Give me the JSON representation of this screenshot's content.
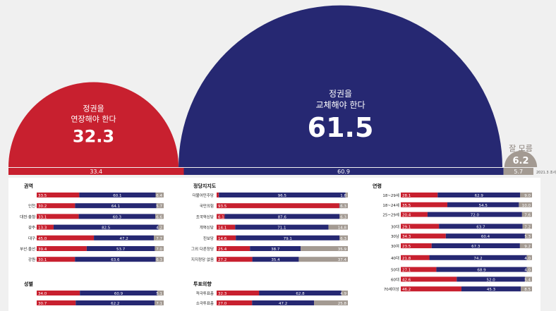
{
  "colors": {
    "red": "#c8202f",
    "navy": "#262872",
    "gray": "#a39a92",
    "bg": "#f0f0f0",
    "panel": "#ffffff"
  },
  "hero": {
    "keep": {
      "label": "정권을\n연장해야 한다",
      "value": "32.3",
      "prev": "33.4"
    },
    "change": {
      "label": "정권을\n교체해야 한다",
      "value": "61.5",
      "prev": "60.9"
    },
    "unknown": {
      "label": "잘 모름",
      "value": "6.2",
      "prev": "5.7"
    },
    "note": "2021.3 조사"
  },
  "chart_data": [
    {
      "type": "bar",
      "title": "권역",
      "categories": [
        "서울",
        "인천·경기",
        "대전·충청·세종",
        "광주·전라",
        "대구·경북",
        "부산·울산·경남",
        "강원·제주"
      ],
      "series": [
        {
          "name": "정권을 연장해야 한다",
          "values": [
            33.5,
            30.2,
            33.1,
            13.3,
            45.0,
            39.4,
            30.1
          ]
        },
        {
          "name": "정권을 교체해야 한다",
          "values": [
            60.1,
            64.1,
            60.3,
            82.5,
            47.2,
            53.7,
            63.6
          ]
        },
        {
          "name": "잘 모름",
          "values": [
            6.4,
            5.7,
            6.6,
            4.2,
            7.7,
            7.0,
            6.3
          ]
        }
      ]
    },
    {
      "type": "bar",
      "title": "정당지지도",
      "categories": [
        "더불어민주당",
        "국민의힘",
        "조국혁신당",
        "개혁신당",
        "진보당",
        "그외 다른정당",
        "지지정당 없음"
      ],
      "series": [
        {
          "name": "정권을 연장해야 한다",
          "values": [
            1.7,
            93.5,
            6.1,
            14.1,
            14.6,
            25.4,
            27.2
          ]
        },
        {
          "name": "정권을 교체해야 한다",
          "values": [
            96.5,
            0.2,
            87.6,
            71.1,
            79.1,
            38.7,
            35.4
          ]
        },
        {
          "name": "잘 모름",
          "values": [
            1.8,
            6.3,
            6.3,
            14.8,
            6.3,
            35.9,
            37.4
          ]
        }
      ]
    },
    {
      "type": "bar",
      "title": "연령",
      "categories": [
        "18~29세",
        "18~24세",
        "25~29세",
        "30대",
        "30남",
        "30여",
        "40대",
        "50대",
        "60대",
        "70세이상"
      ],
      "series": [
        {
          "name": "정권을 연장해야 한다",
          "values": [
            28.1,
            35.5,
            20.4,
            29.1,
            34.3,
            23.5,
            21.8,
            27.1,
            42.6,
            46.2
          ]
        },
        {
          "name": "정권을 교체해야 한다",
          "values": [
            62.9,
            54.5,
            72.0,
            63.7,
            60.4,
            67.3,
            74.2,
            68.9,
            52.0,
            45.3
          ]
        },
        {
          "name": "잘 모름",
          "values": [
            9.0,
            10.0,
            7.6,
            7.2,
            5.3,
            9.2,
            4.0,
            4.0,
            5.4,
            8.5
          ]
        }
      ]
    },
    {
      "type": "bar",
      "title": "성별",
      "categories": [
        "남성",
        "여성"
      ],
      "series": [
        {
          "name": "정권을 연장해야 한다",
          "values": [
            34.0,
            30.7
          ]
        },
        {
          "name": "정권을 교체해야 한다",
          "values": [
            60.9,
            62.2
          ]
        },
        {
          "name": "잘 모름",
          "values": [
            5.1,
            7.1
          ]
        }
      ]
    },
    {
      "type": "bar",
      "title": "투표의향",
      "categories": [
        "적극투표층",
        "소극투표층"
      ],
      "series": [
        {
          "name": "정권을 연장해야 한다",
          "values": [
            32.3,
            27.0
          ]
        },
        {
          "name": "정권을 교체해야 한다",
          "values": [
            62.8,
            47.2
          ]
        },
        {
          "name": "잘 모름",
          "values": [
            4.9,
            25.8
          ]
        }
      ]
    }
  ]
}
